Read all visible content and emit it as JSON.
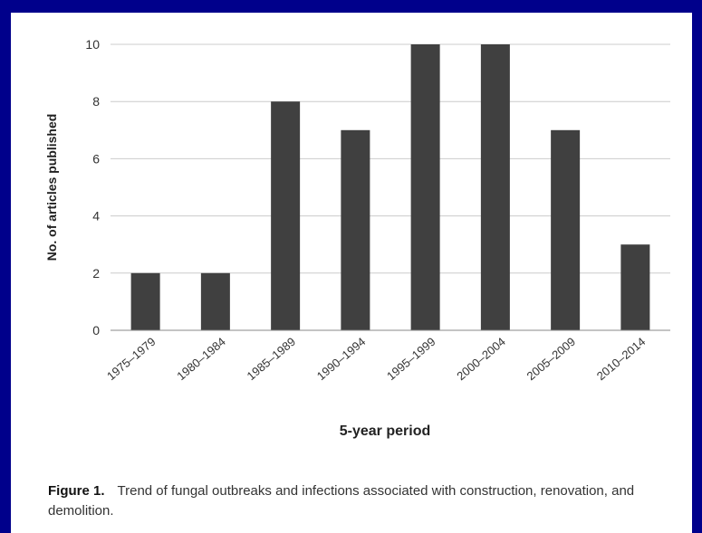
{
  "chart_data": {
    "type": "bar",
    "categories": [
      "1975–1979",
      "1980–1984",
      "1985–1989",
      "1990–1994",
      "1995–1999",
      "2000–2004",
      "2005–2009",
      "2010–2014"
    ],
    "values": [
      2,
      2,
      8,
      7,
      10,
      10,
      7,
      3
    ],
    "xlabel": "5-year period",
    "ylabel": "No. of articles published",
    "ylim": [
      0,
      10
    ],
    "yticks": [
      0,
      2,
      4,
      6,
      8,
      10
    ],
    "grid": true,
    "legend": "none",
    "bar_color": "#404040",
    "grid_color": "#cccccc"
  },
  "caption": {
    "label": "Figure 1.",
    "text": "Trend of fungal outbreaks and infections associated with construction, renovation, and demolition."
  }
}
